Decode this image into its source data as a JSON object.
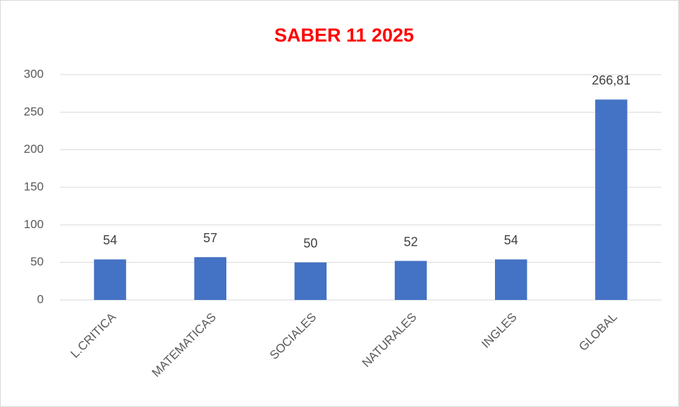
{
  "chart_data": {
    "type": "bar",
    "title": "SABER 11 2025",
    "categories": [
      "L.CRITICA",
      "MATEMATICAS",
      "SOCIALES",
      "NATURALES",
      "INGLES",
      "GLOBAL"
    ],
    "values": [
      54,
      57,
      50,
      52,
      54,
      266.81
    ],
    "value_labels": [
      "54",
      "57",
      "50",
      "52",
      "54",
      "266,81"
    ],
    "color": "#4472c4",
    "ylim": [
      0,
      300
    ],
    "yticks": [
      0,
      50,
      100,
      150,
      200,
      250,
      300
    ],
    "grid": true
  }
}
